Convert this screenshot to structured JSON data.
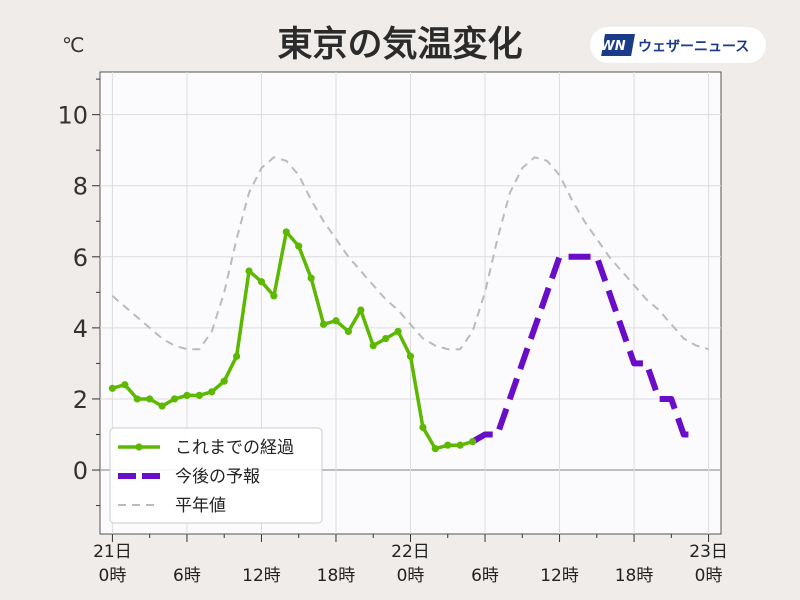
{
  "title": "東京の気温変化",
  "logo": {
    "mark": "WN",
    "text": "ウェザーニュース"
  },
  "chart_data": {
    "type": "line",
    "title": "東京の気温変化",
    "ylabel": "℃",
    "xlabel": "",
    "ylim": [
      -1.8,
      11.2
    ],
    "xlim": [
      -1,
      49
    ],
    "grid": true,
    "yticks": [
      0,
      2,
      4,
      6,
      8,
      10
    ],
    "ytick_labels": [
      "0",
      "2",
      "4",
      "6",
      "8",
      "10"
    ],
    "xticks": [
      {
        "x": 0,
        "label": "0時",
        "date": "21日"
      },
      {
        "x": 6,
        "label": "6時"
      },
      {
        "x": 12,
        "label": "12時"
      },
      {
        "x": 18,
        "label": "18時"
      },
      {
        "x": 24,
        "label": "0時",
        "date": "22日"
      },
      {
        "x": 30,
        "label": "6時"
      },
      {
        "x": 36,
        "label": "12時"
      },
      {
        "x": 42,
        "label": "18時"
      },
      {
        "x": 48,
        "label": "0時",
        "date": "23日"
      }
    ],
    "legend_position": "bottom-left",
    "series": [
      {
        "name": "これまでの経過",
        "color": "#5cb800",
        "style": "solid-markers",
        "x": [
          0,
          0.5,
          1,
          1.5,
          2,
          2.5,
          3,
          3.5,
          4,
          4.5,
          5,
          5.5,
          6,
          6.5,
          7,
          7.5,
          8,
          8.5,
          9,
          9.5,
          10,
          10.5,
          11,
          11.5,
          12,
          12.5,
          13,
          13.5,
          14,
          14.5,
          15,
          15.5,
          16,
          16.5,
          17,
          17.5,
          18,
          18.5,
          19,
          19.5,
          20,
          20.5,
          21,
          21.5,
          22,
          22.5,
          23,
          23.5,
          24,
          24.5,
          25,
          25.5,
          26,
          26.5,
          27,
          27.5,
          28,
          28.5,
          29
        ],
        "values": [
          2.3,
          2.35,
          2.4,
          2.2,
          2.0,
          2.0,
          2.0,
          1.9,
          1.8,
          1.9,
          2.0,
          2.05,
          2.1,
          2.1,
          2.1,
          2.15,
          2.2,
          2.35,
          2.5,
          2.85,
          3.2,
          4.4,
          5.6,
          5.45,
          5.3,
          5.1,
          4.9,
          5.8,
          6.7,
          6.5,
          6.3,
          5.85,
          5.4,
          4.75,
          4.1,
          4.15,
          4.2,
          4.05,
          3.9,
          4.2,
          4.5,
          4.0,
          3.5,
          3.6,
          3.7,
          3.8,
          3.9,
          3.55,
          3.2,
          2.2,
          1.2,
          0.9,
          0.6,
          0.65,
          0.7,
          0.7,
          0.7,
          0.75,
          0.8
        ],
        "marker_x": [
          0,
          1,
          2,
          3,
          4,
          5,
          6,
          7,
          8,
          9,
          10,
          11,
          12,
          13,
          14,
          15,
          16,
          17,
          18,
          19,
          20,
          21,
          22,
          23,
          24,
          25,
          26,
          27,
          28,
          29
        ]
      },
      {
        "name": "今後の予報",
        "color": "#6a0dc8",
        "style": "dashed-thick",
        "x": [
          29,
          30,
          31,
          36,
          37,
          38,
          39,
          42,
          43,
          44,
          45,
          46,
          47
        ],
        "values": [
          0.8,
          1.0,
          1.0,
          6.0,
          6.0,
          6.0,
          6.0,
          3.0,
          3.0,
          2.0,
          2.0,
          1.0,
          1.0
        ]
      },
      {
        "name": "平年値",
        "color": "#bbbbbb",
        "style": "dashed-thin",
        "x": [
          0,
          1,
          2,
          3,
          4,
          5,
          6,
          7,
          8,
          9,
          10,
          11,
          12,
          13,
          14,
          15,
          16,
          17,
          18,
          19,
          20,
          21,
          22,
          23,
          24,
          25,
          26,
          27,
          28,
          29,
          30,
          31,
          32,
          33,
          34,
          35,
          36,
          37,
          38,
          39,
          40,
          41,
          42,
          43,
          44,
          45,
          46,
          47,
          48
        ],
        "values": [
          4.9,
          4.6,
          4.3,
          4.0,
          3.7,
          3.5,
          3.4,
          3.4,
          3.9,
          5.0,
          6.5,
          7.8,
          8.5,
          8.8,
          8.7,
          8.3,
          7.6,
          7.0,
          6.5,
          6.0,
          5.6,
          5.2,
          4.8,
          4.5,
          4.1,
          3.7,
          3.5,
          3.4,
          3.4,
          3.9,
          5.0,
          6.5,
          7.8,
          8.5,
          8.8,
          8.7,
          8.3,
          7.6,
          7.0,
          6.5,
          6.0,
          5.6,
          5.2,
          4.8,
          4.5,
          4.1,
          3.7,
          3.5,
          3.4
        ]
      }
    ]
  }
}
